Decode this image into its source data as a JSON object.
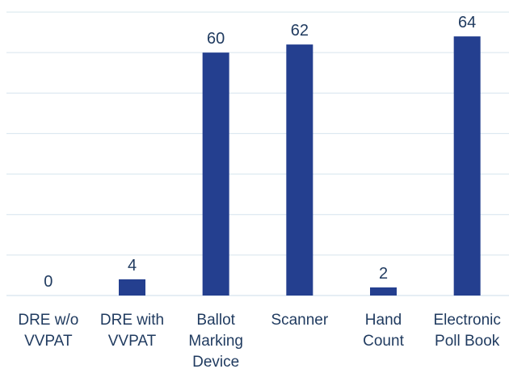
{
  "chart_data": {
    "type": "bar",
    "categories": [
      [
        "DRE w/o",
        "VVPAT"
      ],
      [
        "DRE with",
        "VVPAT"
      ],
      [
        "Ballot",
        "Marking",
        "Device"
      ],
      [
        "Scanner"
      ],
      [
        "Hand",
        "Count"
      ],
      [
        "Electronic",
        "Poll Book"
      ]
    ],
    "values": [
      0,
      4,
      60,
      62,
      2,
      64
    ],
    "data_labels": [
      "0",
      "4",
      "60",
      "62",
      "2",
      "64"
    ],
    "ylim": [
      0,
      70
    ],
    "grid": true,
    "legend": "none",
    "colors": {
      "bar": "#243f8f",
      "text": "#1f3a5f",
      "grid": "#d6e4ee"
    }
  }
}
